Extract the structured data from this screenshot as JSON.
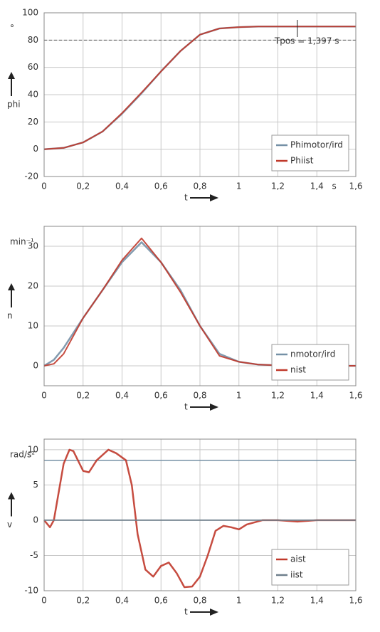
{
  "chart_data": [
    {
      "type": "line",
      "y_label": "phi",
      "y_unit": "°",
      "x_label": "t",
      "x_unit": "s",
      "annotation": "Tpos = 1,397 s",
      "legend": "lower right",
      "grid": true,
      "reference_lines": [
        80
      ],
      "reference_style": "dashed",
      "xlim": [
        0,
        1.6
      ],
      "ylim": [
        -20,
        100
      ],
      "xticks": [
        0,
        {
          "value": 0.2,
          "label": "0,2"
        },
        {
          "value": 0.4,
          "label": "0,4"
        },
        {
          "value": 0.6,
          "label": "0,6"
        },
        {
          "value": 0.8,
          "label": "0,8"
        },
        1,
        {
          "value": 1.2,
          "label": "1,2"
        },
        {
          "value": 1.4,
          "label": "1,4"
        },
        {
          "value": 1.6,
          "label": "1,6"
        }
      ],
      "yticks": [
        -20,
        0,
        20,
        40,
        60,
        80,
        100
      ],
      "x": [
        0,
        0.1,
        0.2,
        0.3,
        0.4,
        0.5,
        0.6,
        0.7,
        0.8,
        0.9,
        1.0,
        1.1,
        1.2,
        1.3,
        1.4,
        1.5,
        1.6
      ],
      "series": [
        {
          "name": "Phimotor/ird",
          "color": "#7590a6",
          "values": [
            0,
            1,
            5,
            13,
            26,
            41,
            57,
            72,
            84,
            88.5,
            89.5,
            90,
            90,
            90,
            90,
            90,
            90
          ]
        },
        {
          "name": "Phiist",
          "color": "#c0392b",
          "values": [
            0,
            1,
            5,
            13,
            26.5,
            41.5,
            57,
            72,
            84,
            88.5,
            89.5,
            90,
            90,
            90,
            90,
            90,
            90
          ]
        }
      ]
    },
    {
      "type": "line",
      "y_label": "n",
      "y_unit": "min⁻¹",
      "x_label": "t",
      "legend": "lower right",
      "grid": true,
      "reference_lines": [],
      "reference_style": "solid",
      "xlim": [
        0,
        1.6
      ],
      "ylim": [
        -5,
        35
      ],
      "xticks": [
        0,
        {
          "value": 0.2,
          "label": "0,2"
        },
        {
          "value": 0.4,
          "label": "0,4"
        },
        {
          "value": 0.6,
          "label": "0,6"
        },
        {
          "value": 0.8,
          "label": "0,8"
        },
        1,
        {
          "value": 1.2,
          "label": "1,2"
        },
        {
          "value": 1.4,
          "label": "1,4"
        },
        {
          "value": 1.6,
          "label": "1,6"
        }
      ],
      "yticks": [
        0,
        10,
        20,
        30
      ],
      "x": [
        0,
        0.05,
        0.1,
        0.2,
        0.3,
        0.4,
        0.5,
        0.6,
        0.7,
        0.8,
        0.9,
        1.0,
        1.1,
        1.2,
        1.4,
        1.6
      ],
      "series": [
        {
          "name": "nmotor/ird",
          "color": "#7590a6",
          "values": [
            0,
            1.5,
            4.5,
            12,
            19,
            26,
            31,
            26,
            19,
            10,
            3,
            1,
            0.3,
            0.1,
            0,
            0
          ]
        },
        {
          "name": "nist",
          "color": "#c0392b",
          "values": [
            0,
            0.5,
            3,
            12,
            19,
            26.5,
            32,
            26,
            18.5,
            10,
            2.5,
            1,
            0.3,
            0.1,
            0,
            0
          ]
        }
      ]
    },
    {
      "type": "line",
      "y_label": "v",
      "y_unit": "rad/s²",
      "x_label": "t",
      "legend": "lower right",
      "grid": true,
      "reference_lines": [
        8.5
      ],
      "reference_style": "solid",
      "xlim": [
        0,
        1.6
      ],
      "ylim": [
        -10,
        11.5
      ],
      "xticks": [
        0,
        {
          "value": 0.2,
          "label": "0,2"
        },
        {
          "value": 0.4,
          "label": "0,4"
        },
        {
          "value": 0.6,
          "label": "0,6"
        },
        {
          "value": 0.8,
          "label": "0,8"
        },
        1,
        {
          "value": 1.2,
          "label": "1,2"
        },
        {
          "value": 1.4,
          "label": "1,4"
        },
        {
          "value": 1.6,
          "label": "1,6"
        }
      ],
      "yticks": [
        -10,
        -5,
        0,
        5,
        10
      ],
      "x": [
        0,
        0.03,
        0.05,
        0.1,
        0.13,
        0.15,
        0.2,
        0.23,
        0.27,
        0.33,
        0.37,
        0.42,
        0.45,
        0.48,
        0.52,
        0.56,
        0.6,
        0.64,
        0.68,
        0.72,
        0.76,
        0.8,
        0.84,
        0.88,
        0.92,
        0.96,
        1.0,
        1.04,
        1.08,
        1.12,
        1.2,
        1.3,
        1.4,
        1.6
      ],
      "series": [
        {
          "name": "aist",
          "color": "#c0392b",
          "values": [
            0,
            -1,
            0,
            8,
            10,
            9.8,
            7,
            6.8,
            8.5,
            10,
            9.5,
            8.5,
            5,
            -2,
            -7,
            -8,
            -6.5,
            -6,
            -7.5,
            -9.5,
            -9.4,
            -8,
            -5,
            -1.5,
            -0.8,
            -1,
            -1.3,
            -0.6,
            -0.3,
            0,
            0,
            -0.2,
            0,
            0
          ]
        },
        {
          "name": "iist",
          "color": "#6f7f8c",
          "values": [
            0,
            0,
            0,
            0,
            0,
            0,
            0,
            0,
            0,
            0,
            0,
            0,
            0,
            0,
            0,
            0,
            0,
            0,
            0,
            0,
            0,
            0,
            0,
            0,
            0,
            0,
            0,
            0,
            0,
            0,
            0,
            0,
            0,
            0
          ]
        }
      ]
    }
  ]
}
